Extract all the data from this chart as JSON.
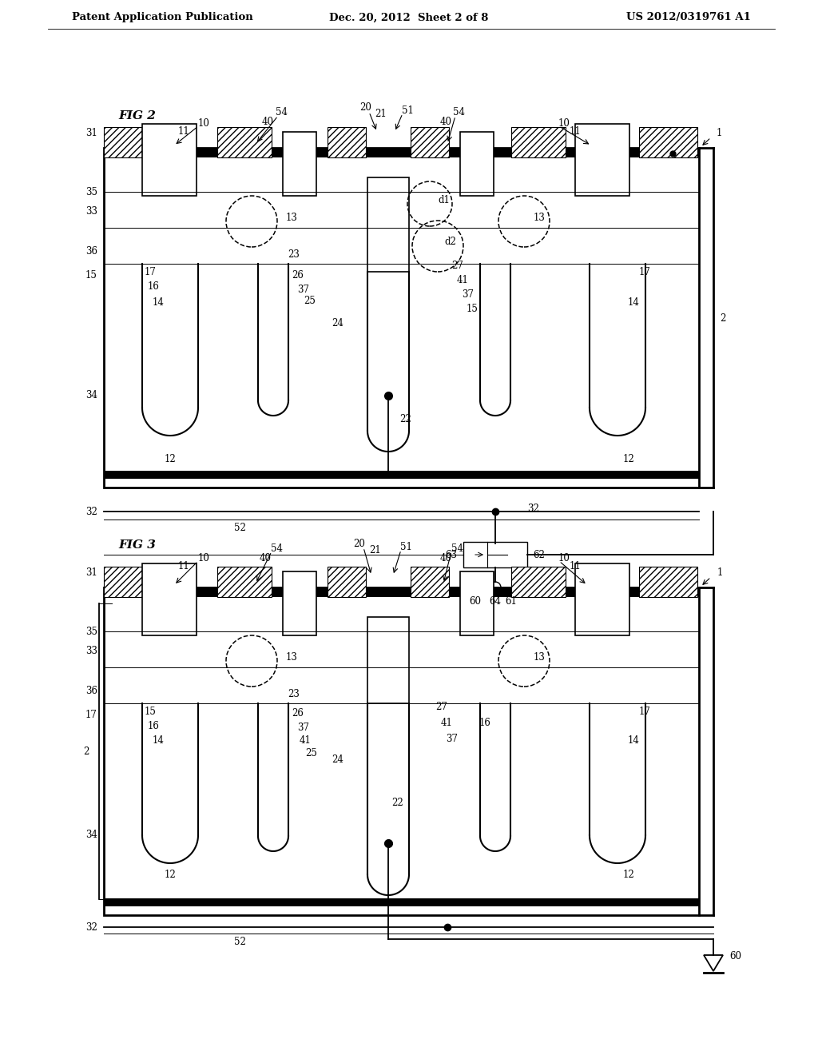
{
  "header_left": "Patent Application Publication",
  "header_center": "Dec. 20, 2012  Sheet 2 of 8",
  "header_right": "US 2012/0319761 A1",
  "background_color": "#ffffff",
  "line_color": "#000000",
  "fig2_label": "FIG 2",
  "fig3_label": "FIG 3",
  "ref_num_fontsize": 8.5,
  "header_fontsize": 9.5,
  "figlabel_fontsize": 11
}
